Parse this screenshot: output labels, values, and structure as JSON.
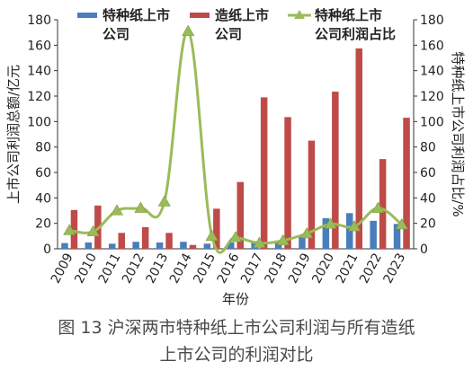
{
  "chart_data": {
    "type": "bar+line",
    "categories": [
      "2009",
      "2010",
      "2011",
      "2012",
      "2013",
      "2014",
      "2015",
      "2016",
      "2017",
      "2018",
      "2019",
      "2020",
      "2021",
      "2022",
      "2023"
    ],
    "series": [
      {
        "name": "特种纸上市公司",
        "type": "bar",
        "axis": "left",
        "color": "#4a7ebb",
        "values": [
          4.5,
          5,
          4,
          5.5,
          5,
          5.5,
          4,
          5,
          5,
          6,
          9.5,
          24,
          28,
          22,
          19.5
        ]
      },
      {
        "name": "造纸上市公司",
        "type": "bar",
        "axis": "left",
        "color": "#be4b48",
        "values": [
          30.5,
          34,
          12.5,
          17,
          12.5,
          3,
          31.5,
          52.5,
          119,
          103.5,
          85,
          123.5,
          157.5,
          70.5,
          103
        ]
      },
      {
        "name": "特种纸上市公司利润占比",
        "type": "line",
        "axis": "right",
        "color": "#9bbb59",
        "values": [
          14.5,
          13.5,
          30,
          32,
          37,
          171,
          10,
          9,
          4.5,
          6.5,
          12,
          19.5,
          17.5,
          32,
          19
        ]
      }
    ],
    "legend": {
      "position": "top",
      "labels": [
        [
          "特种纸上市",
          "公司"
        ],
        [
          "造纸上市",
          "公司"
        ],
        [
          "特种纸上市",
          "公司利润占比"
        ]
      ]
    },
    "xlabel": "年份",
    "ylabel": "上市公司利润总额/亿元",
    "y2label": "特种纸上市公司利润占比/%",
    "ylim": [
      0,
      180
    ],
    "y2lim": [
      0,
      180
    ],
    "yticks": [
      0,
      20,
      40,
      60,
      80,
      100,
      120,
      140,
      160,
      180
    ],
    "grid": false
  },
  "caption": {
    "line1": "图 13    沪深两市特种纸上市公司利润与所有造纸",
    "line2": "上市公司的利润对比"
  }
}
